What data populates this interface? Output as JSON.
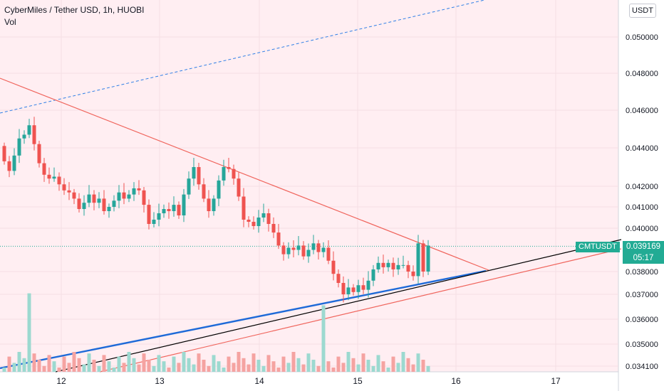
{
  "legend": {
    "title": "CyberMiles / Tether USD, 1h, HUOBI",
    "volume_label": "Vol"
  },
  "price_axis": {
    "currency": "USDT"
  },
  "last_price": {
    "symbol": "CMTUSDT",
    "value": "0.039169",
    "countdown": "05:17"
  },
  "colors": {
    "up": "#26a69a",
    "down": "#ef5350",
    "background_tint": "#ffeef2",
    "resistance": "#f0655d",
    "support_blue": "#1e6ad8",
    "support_black": "#000000",
    "channel_dashed": "#2f7fe6",
    "badge": "#22ab94"
  },
  "chart_data": {
    "type": "candlestick",
    "title": "CyberMiles / Tether USD, 1h, HUOBI",
    "x_ticks": [
      "12",
      "13",
      "14",
      "15",
      "16",
      "17"
    ],
    "y_ticks": [
      "0.034100",
      "0.035000",
      "0.036000",
      "0.037000",
      "0.038000",
      "0.040000",
      "0.041000",
      "0.042000",
      "0.044000",
      "0.046000",
      "0.048000",
      "0.050000"
    ],
    "y_ticks_raw": [
      0.0341,
      0.035,
      0.036,
      0.037,
      0.038,
      0.04,
      0.041,
      0.042,
      0.044,
      0.046,
      0.048,
      0.05
    ],
    "ylim": [
      0.0338,
      0.0525
    ],
    "scale": "log",
    "last_value": 0.039169,
    "candles_count_estimate": 85
  }
}
